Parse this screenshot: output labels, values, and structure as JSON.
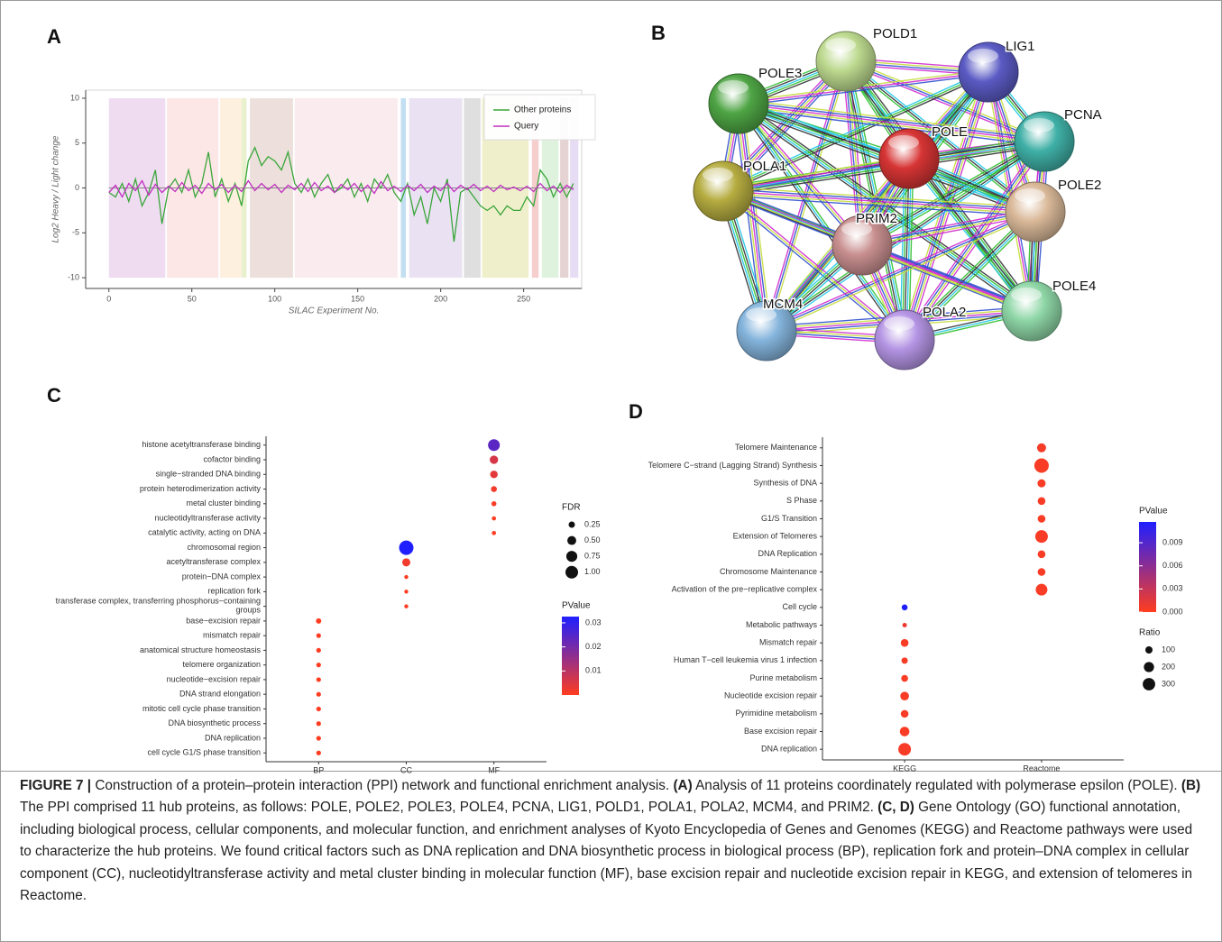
{
  "panels": [
    "A",
    "B",
    "C",
    "D"
  ],
  "chart_data": [
    {
      "type": "line",
      "xlabel": "SILAC Experiment No.",
      "ylabel": "Log2 Heavy / Light change",
      "xlim": [
        -14,
        285
      ],
      "ylim": [
        -11.2,
        10.9
      ],
      "xticks": [
        0,
        50,
        100,
        150,
        200,
        250
      ],
      "yticks": [
        -10,
        -5,
        0,
        5,
        10
      ],
      "legend": "top-right",
      "bands": [
        {
          "x": [
            0,
            34
          ],
          "color": "#ecd6ee"
        },
        {
          "x": [
            35,
            66
          ],
          "color": "#fbe2e2"
        },
        {
          "x": [
            67,
            80
          ],
          "color": "#fdedd8"
        },
        {
          "x": [
            80,
            83
          ],
          "color": "#e4edc4"
        },
        {
          "x": [
            85,
            111
          ],
          "color": "#eadbd6"
        },
        {
          "x": [
            112,
            174
          ],
          "color": "#f9e8ec"
        },
        {
          "x": [
            176,
            179
          ],
          "color": "#b7d8ee"
        },
        {
          "x": [
            181,
            213
          ],
          "color": "#e6ddf1"
        },
        {
          "x": [
            214,
            224
          ],
          "color": "#d9d9d9"
        },
        {
          "x": [
            225,
            253
          ],
          "color": "#ececc2"
        },
        {
          "x": [
            255,
            259
          ],
          "color": "#f4c6c6"
        },
        {
          "x": [
            261,
            271
          ],
          "color": "#d8f0d8"
        },
        {
          "x": [
            272,
            277
          ],
          "color": "#e0cbcb"
        },
        {
          "x": [
            278,
            283
          ],
          "color": "#e2d6f1"
        }
      ],
      "x": [
        0,
        4,
        8,
        12,
        16,
        20,
        24,
        28,
        32,
        36,
        40,
        44,
        48,
        52,
        56,
        60,
        64,
        68,
        72,
        76,
        80,
        84,
        88,
        92,
        96,
        100,
        104,
        108,
        112,
        116,
        120,
        124,
        128,
        132,
        136,
        140,
        144,
        148,
        152,
        156,
        160,
        164,
        168,
        172,
        176,
        180,
        184,
        188,
        192,
        196,
        200,
        204,
        208,
        212,
        216,
        220,
        224,
        228,
        232,
        236,
        240,
        244,
        248,
        252,
        256,
        260,
        264,
        268,
        272,
        276,
        280
      ],
      "series": [
        {
          "name": "Other proteins",
          "color": "#3aa63a",
          "values": [
            -0.5,
            -1,
            0.5,
            -1.5,
            1,
            -2,
            -0.5,
            2,
            -4,
            0,
            1,
            -0.5,
            2,
            -1,
            0.5,
            4,
            -1,
            1,
            -1.5,
            0.5,
            -2,
            3,
            4.5,
            2.5,
            3.5,
            3,
            2,
            4,
            0.5,
            -0.5,
            1,
            -1,
            0.5,
            1.5,
            -0.5,
            0,
            1,
            -1,
            0.5,
            -1.5,
            1,
            0,
            1.5,
            -0.5,
            -1.5,
            0.5,
            -3,
            -1,
            -4,
            0,
            -1.5,
            1,
            -6,
            -0.5,
            0,
            -1,
            -2,
            -2.5,
            -2,
            -3,
            -2,
            -2.5,
            -2.5,
            -1,
            -2,
            2,
            1,
            -1,
            0.5,
            -1,
            0.5
          ]
        },
        {
          "name": "Query",
          "color": "#c030c0",
          "values": [
            -0.5,
            0.3,
            -1,
            0.5,
            -0.3,
            0.8,
            -0.8,
            0.4,
            -0.5,
            0.2,
            -0.4,
            0.6,
            -0.3,
            0.3,
            -0.6,
            0.5,
            -0.2,
            0.4,
            -0.5,
            0.3,
            -0.4,
            0.8,
            -0.3,
            0.5,
            -0.2,
            0.4,
            -0.5,
            0.3,
            -0.2,
            0.5,
            -0.4,
            0.6,
            -0.3,
            0.2,
            -0.5,
            0.4,
            -0.2,
            0.5,
            -0.4,
            0.3,
            -0.6,
            0.7,
            -0.3,
            0.2,
            -0.4,
            0.3,
            -0.3,
            0.4,
            -0.5,
            0.2,
            -0.3,
            0.5,
            -0.4,
            0.3,
            -0.2,
            0.4,
            -0.3,
            0.2,
            -0.4,
            0.3,
            -0.2,
            0.1,
            -0.3,
            0.2,
            -0.4,
            0.5,
            -0.3,
            0.2,
            -0.5,
            0.3,
            -0.2
          ]
        }
      ]
    },
    {
      "type": "dot",
      "x_categories": [
        "BP",
        "CC",
        "MF"
      ],
      "categories": [
        "histone acetyltransferase binding",
        "cofactor binding",
        "single−stranded DNA binding",
        "protein heterodimerization activity",
        "metal cluster binding",
        "nucleotidyltransferase activity",
        "catalytic activity, acting on DNA",
        "chromosomal region",
        "acetyltransferase complex",
        "protein−DNA complex",
        "replication fork",
        "transferase complex, transferring phosphorus−containing\ngroups",
        "base−excision repair",
        "mismatch repair",
        "anatomical structure homeostasis",
        "telomere organization",
        "nucleotide−excision repair",
        "DNA strand elongation",
        "mitotic cell cycle phase transition",
        "DNA biosynthetic process",
        "DNA replication",
        "cell cycle G1/S phase transition"
      ],
      "group": [
        "MF",
        "MF",
        "MF",
        "MF",
        "MF",
        "MF",
        "MF",
        "CC",
        "CC",
        "CC",
        "CC",
        "CC",
        "BP",
        "BP",
        "BP",
        "BP",
        "BP",
        "BP",
        "BP",
        "BP",
        "BP",
        "BP"
      ],
      "size": [
        0.87,
        0.44,
        0.36,
        0.22,
        0.16,
        0.11,
        0.11,
        1.3,
        0.41,
        0.1,
        0.1,
        0.1,
        0.18,
        0.14,
        0.14,
        0.14,
        0.14,
        0.14,
        0.14,
        0.14,
        0.14,
        0.14
      ],
      "pvalue": [
        0.024,
        0.006,
        0.004,
        0.002,
        0.001,
        0.0005,
        0.0005,
        0.033,
        0.002,
        0.0003,
        0.0003,
        0.0003,
        0.0001,
        0.0001,
        0.0001,
        0.0001,
        0.0001,
        0.0001,
        0.0001,
        0.0001,
        0.0001,
        0.0001
      ],
      "size_title": "FDR",
      "size_ticks": [
        0.25,
        {
          "value": 0.5,
          "label": "0.50"
        },
        0.75,
        {
          "value": 1,
          "label": "1.00"
        }
      ],
      "color_title": "PValue",
      "color_lim": [
        0,
        0.0326
      ],
      "color_ticks": [
        0.01,
        0.02,
        0.03
      ],
      "colors": {
        "low": "#ff3d1f",
        "high": "#1f1fff"
      }
    },
    {
      "type": "dot",
      "x_categories": [
        "KEGG",
        "Reactome"
      ],
      "categories": [
        "Telomere Maintenance",
        "Telomere C−strand (Lagging Strand) Synthesis",
        "Synthesis of DNA",
        "S Phase",
        "G1/S Transition",
        "Extension of Telomeres",
        "DNA Replication",
        "Chromosome Maintenance",
        "Activation of the pre−replicative complex",
        "Cell cycle",
        "Metabolic pathways",
        "Mismatch repair",
        "Human T−cell leukemia virus 1 infection",
        "Purine metabolism",
        "Nucleotide excision repair",
        "Pyrimidine metabolism",
        "Base excision repair",
        "DNA replication"
      ],
      "group": [
        "Reactome",
        "Reactome",
        "Reactome",
        "Reactome",
        "Reactome",
        "Reactome",
        "Reactome",
        "Reactome",
        "Reactome",
        "KEGG",
        "KEGG",
        "KEGG",
        "KEGG",
        "KEGG",
        "KEGG",
        "KEGG",
        "KEGG",
        "KEGG"
      ],
      "size": [
        156,
        400,
        127,
        115,
        115,
        306,
        115,
        115,
        264,
        68,
        39,
        115,
        77,
        90,
        144,
        115,
        176,
        306
      ],
      "pvalue": [
        0.0005,
        0.0003,
        0.0003,
        0.0003,
        0.0003,
        0.0003,
        0.0003,
        0.0003,
        0.0003,
        0.0117,
        0.001,
        0.0003,
        0.0003,
        0.0003,
        0.0003,
        0.0003,
        0.0003,
        0.0003
      ],
      "size_title": "Ratio",
      "size_ticks": [
        100,
        200,
        300
      ],
      "color_title": "PValue",
      "color_lim": [
        0,
        0.0117
      ],
      "color_ticks": [
        {
          "value": 0,
          "label": "0.000"
        },
        {
          "value": 0.003,
          "label": "0.003"
        },
        {
          "value": 0.006,
          "label": "0.006"
        },
        {
          "value": 0.009,
          "label": "0.009"
        }
      ],
      "colors": {
        "low": "#ff3d1f",
        "high": "#1f1fff"
      }
    }
  ],
  "network": {
    "nodes": [
      "POLD1",
      "LIG1",
      "POLE3",
      "PCNA",
      "POLE",
      "POLA1",
      "POLE2",
      "PRIM2",
      "POLE4",
      "MCM4",
      "POLA2"
    ]
  },
  "caption": [
    {
      "text": "FIGURE 7 |",
      "bold": true
    },
    {
      "text": " Construction of a protein–protein interaction (PPI) network and functional enrichment analysis. ",
      "bold": false
    },
    {
      "text": "(A)",
      "bold": true
    },
    {
      "text": " Analysis of 11 proteins coordinately regulated with polymerase epsilon (POLE). ",
      "bold": false
    },
    {
      "text": "(B)",
      "bold": true
    },
    {
      "text": " The PPI comprised 11 hub proteins, as follows: POLE, POLE2, POLE3, POLE4, PCNA, LIG1, POLD1, POLA1, POLA2, MCM4, and PRIM2. ",
      "bold": false
    },
    {
      "text": "(C, D)",
      "bold": true
    },
    {
      "text": " Gene Ontology (GO) functional annotation, including biological process, cellular components, and molecular function, and enrichment analyses of Kyoto Encyclopedia of Genes and Genomes (KEGG) and Reactome pathways were used to characterize the hub proteins. We found critical factors such as DNA replication and DNA biosynthetic process in biological process (BP), replication fork and protein–DNA complex in cellular component (CC), nucleotidyltransferase activity and metal cluster binding in molecular function (MF), base excision repair and nucleotide excision repair in KEGG, and extension of telomeres in Reactome.",
      "bold": false
    }
  ]
}
